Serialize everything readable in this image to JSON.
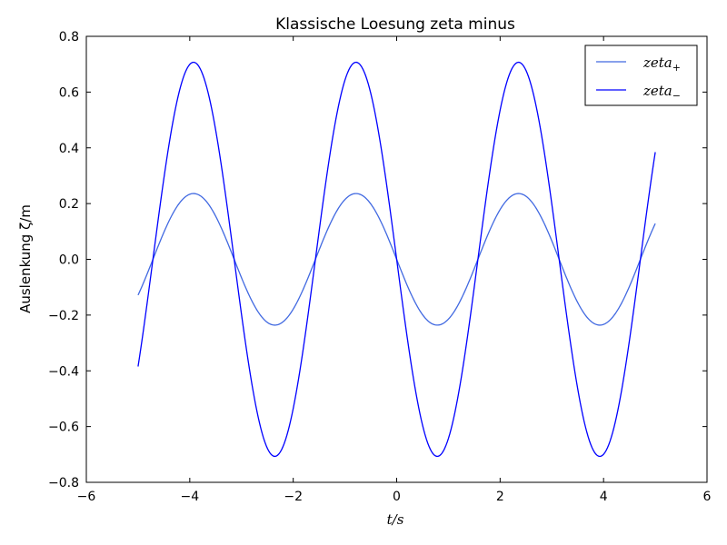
{
  "chart_data": {
    "type": "line",
    "title": "Klassische Loesung zeta minus",
    "xlabel": "t/s",
    "ylabel": "Auslenkung ζ/m",
    "xlim": [
      -6,
      6
    ],
    "ylim": [
      -0.8,
      0.8
    ],
    "xticks": [
      -6,
      -4,
      -2,
      0,
      2,
      4,
      6
    ],
    "yticks": [
      -0.8,
      -0.6,
      -0.4,
      -0.2,
      0.0,
      0.2,
      0.4,
      0.6,
      0.8
    ],
    "xtick_labels": [
      "−6",
      "−4",
      "−2",
      "0",
      "2",
      "4",
      "6"
    ],
    "ytick_labels": [
      "−0.8",
      "−0.6",
      "−0.4",
      "−0.2",
      "0.0",
      "0.2",
      "0.4",
      "0.6",
      "0.8"
    ],
    "grid": false,
    "legend_position": "top-right",
    "x_range": [
      -5,
      5
    ],
    "series": [
      {
        "name": "zeta₊",
        "name_base": "zeta",
        "name_sub": "+",
        "color": "#4169e1",
        "amplitude": 0.236,
        "frequency_rad_per_s": 2.0,
        "samples": [
          [
            -5.0,
            -0.128
          ],
          [
            -4.5,
            0.098
          ],
          [
            -4.0,
            0.233
          ],
          [
            -3.5,
            0.155
          ],
          [
            -3.0,
            -0.066
          ],
          [
            -2.5,
            -0.226
          ],
          [
            -2.0,
            -0.179
          ],
          [
            -1.5,
            0.033
          ],
          [
            -1.0,
            0.215
          ],
          [
            -0.5,
            0.199
          ],
          [
            0.0,
            0.0
          ],
          [
            0.5,
            -0.199
          ],
          [
            1.0,
            -0.215
          ],
          [
            1.5,
            -0.033
          ],
          [
            2.0,
            0.179
          ],
          [
            2.5,
            0.226
          ],
          [
            3.0,
            0.066
          ],
          [
            3.5,
            -0.155
          ],
          [
            4.0,
            -0.233
          ],
          [
            4.5,
            -0.098
          ],
          [
            5.0,
            0.128
          ]
        ]
      },
      {
        "name": "zeta₋",
        "name_base": "zeta",
        "name_sub": "−",
        "color": "#0000ff",
        "amplitude": 0.707,
        "frequency_rad_per_s": 2.0,
        "samples": [
          [
            -5.0,
            -0.385
          ],
          [
            -4.5,
            0.293
          ],
          [
            -4.0,
            0.7
          ],
          [
            -3.5,
            0.464
          ],
          [
            -3.0,
            -0.198
          ],
          [
            -2.5,
            -0.677
          ],
          [
            -2.0,
            -0.535
          ],
          [
            -1.5,
            0.1
          ],
          [
            -1.0,
            0.643
          ],
          [
            -0.5,
            0.595
          ],
          [
            0.0,
            0.0
          ],
          [
            0.5,
            -0.595
          ],
          [
            1.0,
            -0.643
          ],
          [
            1.5,
            -0.1
          ],
          [
            2.0,
            0.535
          ],
          [
            2.5,
            0.677
          ],
          [
            3.0,
            0.198
          ],
          [
            3.5,
            -0.464
          ],
          [
            4.0,
            -0.7
          ],
          [
            4.5,
            -0.293
          ],
          [
            5.0,
            0.385
          ]
        ]
      }
    ]
  }
}
